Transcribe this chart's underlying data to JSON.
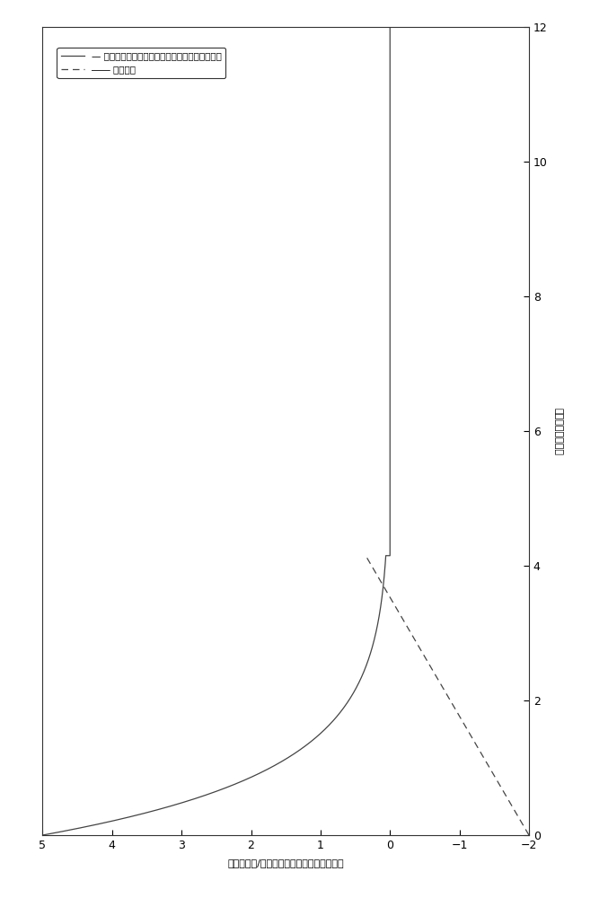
{
  "ylabel_right": "时间（单位：秒）",
  "xlabel": "（单位：度/秒）温差变化率与温度误差变化",
  "legend_line1": "— 稳态误差消除后系统输入（中央空调控制系统）",
  "legend_line2": "―― 稳态误差",
  "xlim_left": 5,
  "xlim_right": -2,
  "ylim_bottom": 0,
  "ylim_top": 12,
  "yticks": [
    0,
    2,
    4,
    6,
    8,
    10,
    12
  ],
  "xticks": [
    -2,
    -1,
    0,
    1,
    2,
    3,
    4,
    5
  ],
  "bg_color": "#ffffff",
  "line1_color": "#444444",
  "line2_color": "#444444",
  "spike_t": 4.15,
  "spike_x": 0.05,
  "solid_start_x": 5.0,
  "solid_start_t": 0.0,
  "dashed_peak_x": 0.35,
  "dashed_peak_t": 4.15,
  "dashed_end_x": -2.0,
  "dashed_end_t": 0.0
}
